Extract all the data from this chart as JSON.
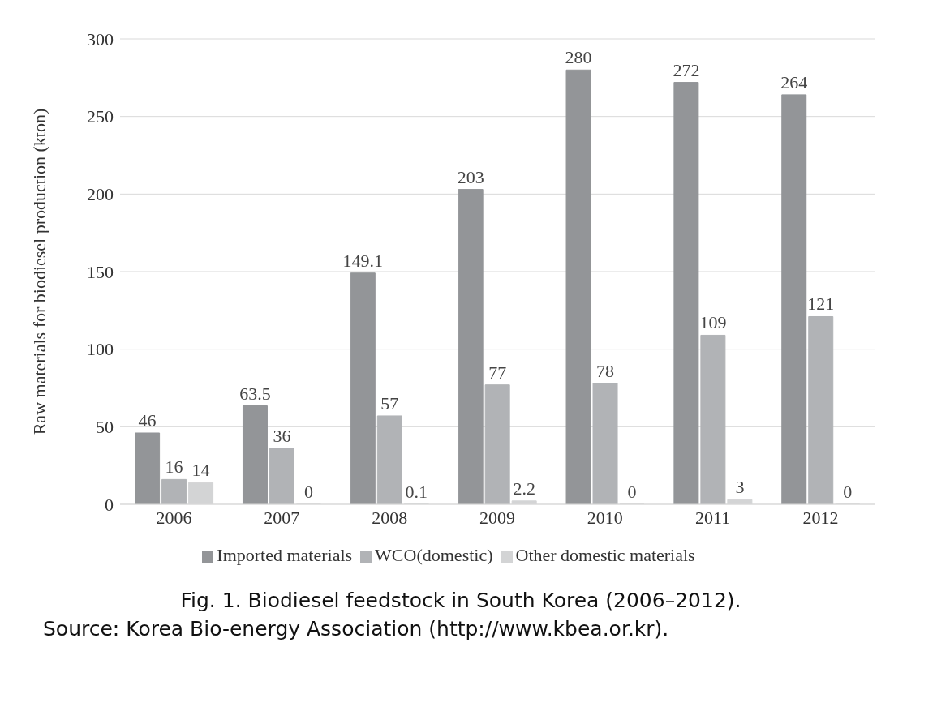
{
  "chart_data": {
    "type": "bar",
    "title": "Fig. 1. Biodiesel feedstock in South Korea (2006–2012).",
    "ylabel": "Raw materials for biodiesel production (kton)",
    "categories": [
      "2006",
      "2007",
      "2008",
      "2009",
      "2010",
      "2011",
      "2012"
    ],
    "series": [
      {
        "name": "Imported materials",
        "color": "#939598",
        "values": [
          46,
          63.5,
          149.1,
          203,
          280,
          272,
          264
        ]
      },
      {
        "name": "WCO(domestic)",
        "color": "#b1b3b6",
        "values": [
          16,
          36,
          57,
          77,
          78,
          109,
          121
        ]
      },
      {
        "name": "Other domestic materials",
        "color": "#d3d4d5",
        "values": [
          14,
          0,
          0.1,
          2.2,
          0,
          3,
          0
        ]
      }
    ],
    "ylim": [
      0,
      300
    ],
    "yticks": [
      0,
      50,
      100,
      150,
      200,
      250,
      300
    ],
    "grid": "y",
    "legend": "bottom",
    "data_labels": true,
    "annotations": [
      "Source: Korea Bio-energy Association (http://www.kbea.or.kr)."
    ]
  }
}
